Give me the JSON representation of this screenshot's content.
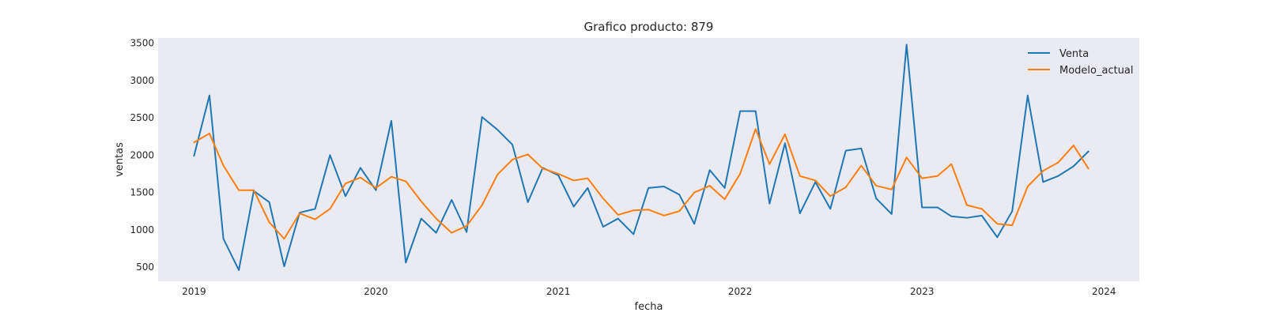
{
  "chart_data": {
    "type": "line",
    "title": "Grafico producto: 879",
    "xlabel": "fecha",
    "ylabel": "ventas",
    "xlim": [
      "2018-10-21",
      "2024-03-12"
    ],
    "ylim": [
      310,
      3570
    ],
    "x_ticks": [
      {
        "date": "2019-01-01",
        "label": "2019"
      },
      {
        "date": "2020-01-01",
        "label": "2020"
      },
      {
        "date": "2021-01-01",
        "label": "2021"
      },
      {
        "date": "2022-01-01",
        "label": "2022"
      },
      {
        "date": "2023-01-01",
        "label": "2023"
      },
      {
        "date": "2024-01-01",
        "label": "2024"
      }
    ],
    "y_ticks": [
      500,
      1000,
      1500,
      2000,
      2500,
      3000,
      3500
    ],
    "grid": false,
    "legend": "top-right",
    "background_color": "#eaeaf2",
    "x": [
      "2019-01",
      "2019-02",
      "2019-03",
      "2019-04",
      "2019-05",
      "2019-06",
      "2019-07",
      "2019-08",
      "2019-09",
      "2019-10",
      "2019-11",
      "2019-12",
      "2020-01",
      "2020-02",
      "2020-03",
      "2020-04",
      "2020-05",
      "2020-06",
      "2020-07",
      "2020-08",
      "2020-09",
      "2020-10",
      "2020-11",
      "2020-12",
      "2021-01",
      "2021-02",
      "2021-03",
      "2021-04",
      "2021-05",
      "2021-06",
      "2021-07",
      "2021-08",
      "2021-09",
      "2021-10",
      "2021-11",
      "2021-12",
      "2022-01",
      "2022-02",
      "2022-03",
      "2022-04",
      "2022-05",
      "2022-06",
      "2022-07",
      "2022-08",
      "2022-09",
      "2022-10",
      "2022-11",
      "2022-12",
      "2023-01",
      "2023-02",
      "2023-03",
      "2023-04",
      "2023-05",
      "2023-06",
      "2023-07",
      "2023-08",
      "2023-09",
      "2023-10",
      "2023-11",
      "2023-12"
    ],
    "series": [
      {
        "name": "Venta",
        "color": "#1f77b4",
        "values": [
          1990,
          2800,
          880,
          460,
          1520,
          1370,
          510,
          1230,
          1280,
          2000,
          1450,
          1830,
          1530,
          2460,
          560,
          1150,
          960,
          1400,
          970,
          2510,
          2340,
          2140,
          1370,
          1830,
          1730,
          1310,
          1560,
          1040,
          1150,
          940,
          1560,
          1580,
          1470,
          1080,
          1800,
          1560,
          2590,
          2590,
          1350,
          2160,
          1220,
          1640,
          1280,
          2060,
          2090,
          1420,
          1210,
          3480,
          1300,
          1300,
          1180,
          1160,
          1190,
          900,
          1250,
          2800,
          1640,
          1720,
          1850,
          2050
        ]
      },
      {
        "name": "Modelo_actual",
        "color": "#ff7f0e",
        "values": [
          2170,
          2290,
          1860,
          1530,
          1530,
          1100,
          880,
          1220,
          1140,
          1280,
          1620,
          1700,
          1560,
          1710,
          1650,
          1380,
          1150,
          960,
          1050,
          1330,
          1740,
          1940,
          2010,
          1820,
          1750,
          1660,
          1690,
          1420,
          1200,
          1260,
          1270,
          1190,
          1250,
          1500,
          1590,
          1410,
          1750,
          2350,
          1880,
          2280,
          1720,
          1660,
          1450,
          1570,
          1860,
          1590,
          1540,
          1970,
          1690,
          1720,
          1880,
          1330,
          1280,
          1080,
          1060,
          1580,
          1790,
          1900,
          2130,
          1820
        ]
      }
    ]
  }
}
